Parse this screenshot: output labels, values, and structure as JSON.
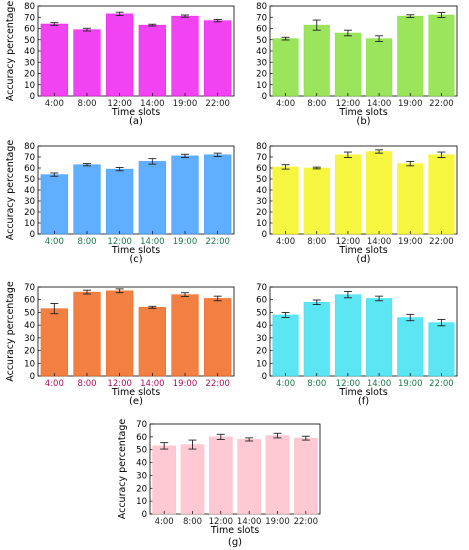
{
  "chart_data": [
    {
      "type": "bar",
      "panel_label": "(a)",
      "color": "#ee22ee",
      "tick_color": "#222222",
      "ylabel": "Accuracy percentage",
      "xlabel": "Time slots",
      "ylim": [
        0,
        80
      ],
      "yticks": [
        0,
        10,
        20,
        30,
        40,
        50,
        60,
        70,
        80
      ],
      "categories": [
        "4:00",
        "8:00",
        "12:00",
        "14:00",
        "19:00",
        "22:00"
      ],
      "values": [
        64,
        59,
        73,
        63,
        71,
        67
      ],
      "errors": [
        1.2,
        1.2,
        1.5,
        0.8,
        1.0,
        1.0
      ]
    },
    {
      "type": "bar",
      "panel_label": "(b)",
      "color": "#88e040",
      "tick_color": "#222222",
      "ylabel": "",
      "xlabel": "Time slots",
      "ylim": [
        0,
        80
      ],
      "yticks": [
        0,
        10,
        20,
        30,
        40,
        50,
        60,
        70,
        80
      ],
      "categories": [
        "4:00",
        "8:00",
        "12:00",
        "14:00",
        "19:00",
        "22:00"
      ],
      "values": [
        51,
        63,
        56,
        51,
        71,
        72
      ],
      "errors": [
        1.2,
        4.5,
        2.5,
        2.5,
        1.2,
        2.2
      ]
    },
    {
      "type": "bar",
      "panel_label": "(c)",
      "color": "#44a0ff",
      "tick_color": "#1a7a4a",
      "ylabel": "Accuracy percentage",
      "xlabel": "Time slots",
      "ylim": [
        0,
        80
      ],
      "yticks": [
        0,
        10,
        20,
        30,
        40,
        50,
        60,
        70,
        80
      ],
      "categories": [
        "4:00",
        "8:00",
        "12:00",
        "14:00",
        "19:00",
        "22:00"
      ],
      "values": [
        54,
        63,
        59,
        66,
        71,
        72
      ],
      "errors": [
        1.5,
        1.0,
        1.5,
        2.5,
        1.5,
        1.5
      ]
    },
    {
      "type": "bar",
      "panel_label": "(d)",
      "color": "#f5f520",
      "tick_color": "#222222",
      "ylabel": "",
      "xlabel": "Time slots",
      "ylim": [
        0,
        80
      ],
      "yticks": [
        0,
        10,
        20,
        30,
        40,
        50,
        60,
        70,
        80
      ],
      "categories": [
        "4:00",
        "8:00",
        "12:00",
        "14:00",
        "19:00",
        "22:00"
      ],
      "values": [
        61,
        60,
        72,
        75,
        64,
        72
      ],
      "errors": [
        2.0,
        0.8,
        2.5,
        1.5,
        2.0,
        2.5
      ]
    },
    {
      "type": "bar",
      "panel_label": "(e)",
      "color": "#f06a22",
      "tick_color": "#aa1060",
      "ylabel": "Accuracy percentage",
      "xlabel": "Time slots",
      "ylim": [
        0,
        70
      ],
      "yticks": [
        0,
        10,
        20,
        30,
        40,
        50,
        60,
        70
      ],
      "categories": [
        "4:00",
        "8:00",
        "12:00",
        "14:00",
        "19:00",
        "22:00"
      ],
      "values": [
        53,
        66,
        67,
        54,
        64,
        61
      ],
      "errors": [
        4.0,
        1.5,
        1.5,
        0.8,
        1.5,
        1.8
      ]
    },
    {
      "type": "bar",
      "panel_label": "(f)",
      "color": "#40e0f0",
      "tick_color": "#1a7a4a",
      "ylabel": "",
      "xlabel": "Time slots",
      "ylim": [
        0,
        70
      ],
      "yticks": [
        0,
        10,
        20,
        30,
        40,
        50,
        60,
        70
      ],
      "categories": [
        "4:00",
        "8:00",
        "12:00",
        "14:00",
        "19:00",
        "22:00"
      ],
      "values": [
        48,
        58,
        64,
        61,
        46,
        42
      ],
      "errors": [
        2.0,
        1.8,
        2.5,
        1.8,
        2.5,
        2.5
      ]
    },
    {
      "type": "bar",
      "panel_label": "(g)",
      "color": "#ffc0cb",
      "tick_color": "#222222",
      "ylabel": "Accuracy percentage",
      "xlabel": "Time slots",
      "ylim": [
        0,
        70
      ],
      "yticks": [
        0,
        10,
        20,
        30,
        40,
        50,
        60,
        70
      ],
      "categories": [
        "4:00",
        "8:00",
        "12:00",
        "14:00",
        "19:00",
        "22:00"
      ],
      "values": [
        53,
        54,
        60,
        58,
        61,
        59
      ],
      "errors": [
        2.5,
        3.5,
        2.0,
        1.2,
        1.8,
        1.5
      ]
    }
  ]
}
